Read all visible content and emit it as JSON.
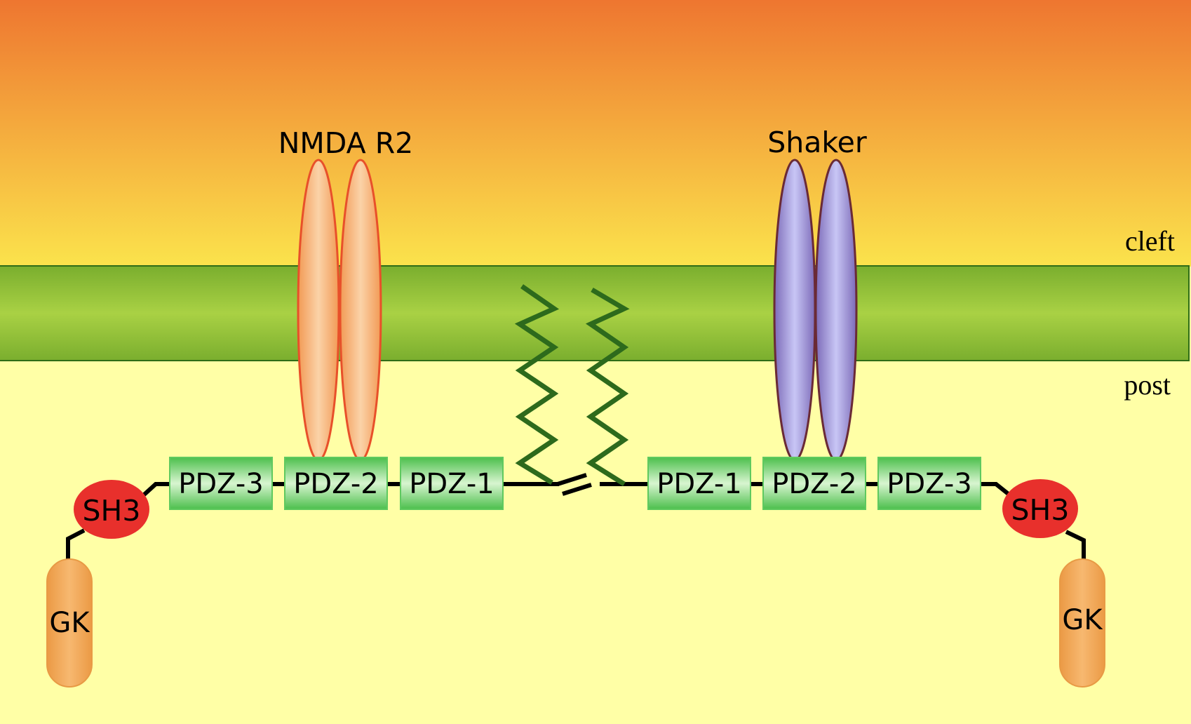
{
  "labels": {
    "receptor_left": "NMDA R2",
    "receptor_right": "Shaker",
    "region_cleft": "cleft",
    "region_post": "post"
  },
  "left_protein": {
    "pdz3": "PDZ-3",
    "pdz2": "PDZ-2",
    "pdz1": "PDZ-1",
    "sh3": "SH3",
    "gk": "GK"
  },
  "right_protein": {
    "pdz1": "PDZ-1",
    "pdz2": "PDZ-2",
    "pdz3": "PDZ-3",
    "sh3": "SH3",
    "gk": "GK"
  },
  "colors": {
    "cleft_top": "#ee7730",
    "cleft_bottom": "#fbe34c",
    "postsynaptic": "#ffffa6",
    "membrane": "#9bc63c",
    "membrane_edge": "#2f6d18",
    "pdz_domain": "#5fc95f",
    "sh3_domain": "#e8302c",
    "gk_domain": "#f0a650",
    "nmda_receptor": "#f6b57c",
    "shaker_channel": "#b8b4ea",
    "palmitoyl_chain": "#2d6a1c"
  }
}
